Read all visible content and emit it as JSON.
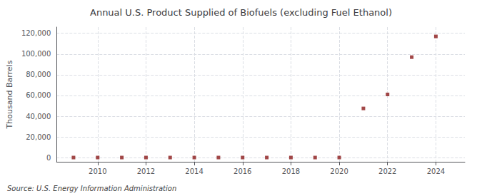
{
  "chart_data": {
    "type": "scatter",
    "title": "Annual U.S. Product Supplied of Biofuels (excluding Fuel Ethanol)",
    "ylabel": "Thousand Barrels",
    "source": "Source: U.S. Energy Information Administration",
    "color": "#8b1a1a",
    "marker": "square",
    "grid": true,
    "x": [
      2009,
      2010,
      2011,
      2012,
      2013,
      2014,
      2015,
      2016,
      2017,
      2018,
      2019,
      2020,
      2021,
      2022,
      2023,
      2024
    ],
    "values": [
      100,
      100,
      100,
      100,
      100,
      100,
      100,
      100,
      100,
      100,
      100,
      100,
      47500,
      61000,
      97000,
      117000
    ],
    "xlim": [
      2008.3,
      2025.2
    ],
    "xticks": [
      2010,
      2012,
      2014,
      2016,
      2018,
      2020,
      2022,
      2024
    ],
    "ylim": [
      -4000,
      126000
    ],
    "yticks": [
      0,
      {
        "value": 20000,
        "label": "20,000"
      },
      {
        "value": 40000,
        "label": "40,000"
      },
      {
        "value": 60000,
        "label": "60,000"
      },
      {
        "value": 80000,
        "label": "80,000"
      },
      {
        "value": 100000,
        "label": "100,000"
      },
      {
        "value": 120000,
        "label": "120,000"
      }
    ]
  }
}
